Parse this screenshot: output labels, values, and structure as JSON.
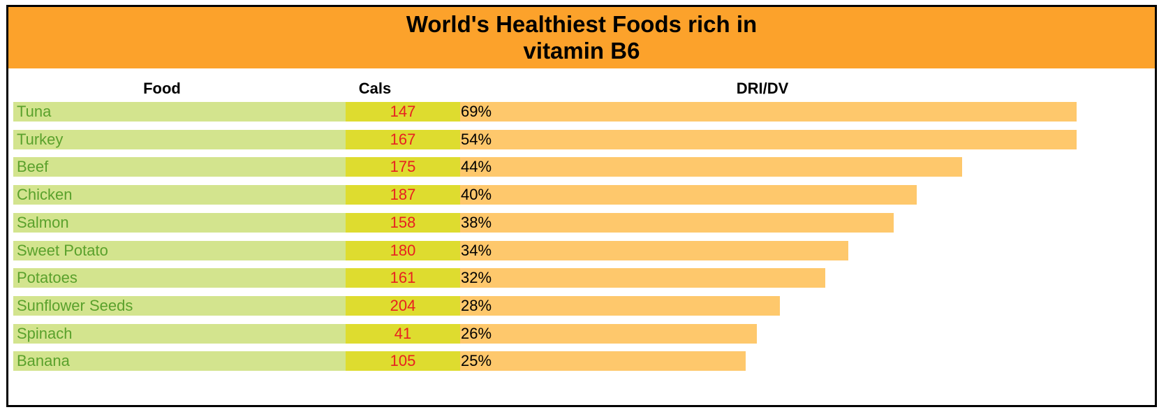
{
  "chart_data": {
    "type": "table",
    "title": "World's Healthiest Foods rich in vitamin B6",
    "columns": [
      "Food",
      "Cals",
      "DRI/DV"
    ],
    "rows": [
      {
        "food": "Tuna",
        "cals": "147",
        "dri": "69%",
        "dri_value": 69
      },
      {
        "food": "Turkey",
        "cals": "167",
        "dri": "54%",
        "dri_value": 54
      },
      {
        "food": "Beef",
        "cals": "175",
        "dri": "44%",
        "dri_value": 44
      },
      {
        "food": "Chicken",
        "cals": "187",
        "dri": "40%",
        "dri_value": 40
      },
      {
        "food": "Salmon",
        "cals": "158",
        "dri": "38%",
        "dri_value": 38
      },
      {
        "food": "Sweet Potato",
        "cals": "180",
        "dri": "34%",
        "dri_value": 34
      },
      {
        "food": "Potatoes",
        "cals": "161",
        "dri": "32%",
        "dri_value": 32
      },
      {
        "food": "Sunflower Seeds",
        "cals": "204",
        "dri": "28%",
        "dri_value": 28
      },
      {
        "food": "Spinach",
        "cals": "41",
        "dri": "26%",
        "dri_value": 26
      },
      {
        "food": "Banana",
        "cals": "105",
        "dri": "25%",
        "dri_value": 25
      }
    ],
    "colors": {
      "title_band": "#fca22b",
      "food_cell": "#d3e48e",
      "food_text": "#5aa12c",
      "cals_cell": "#dedc2f",
      "cals_text": "#e82020",
      "dri_bar": "#fec86c"
    }
  }
}
